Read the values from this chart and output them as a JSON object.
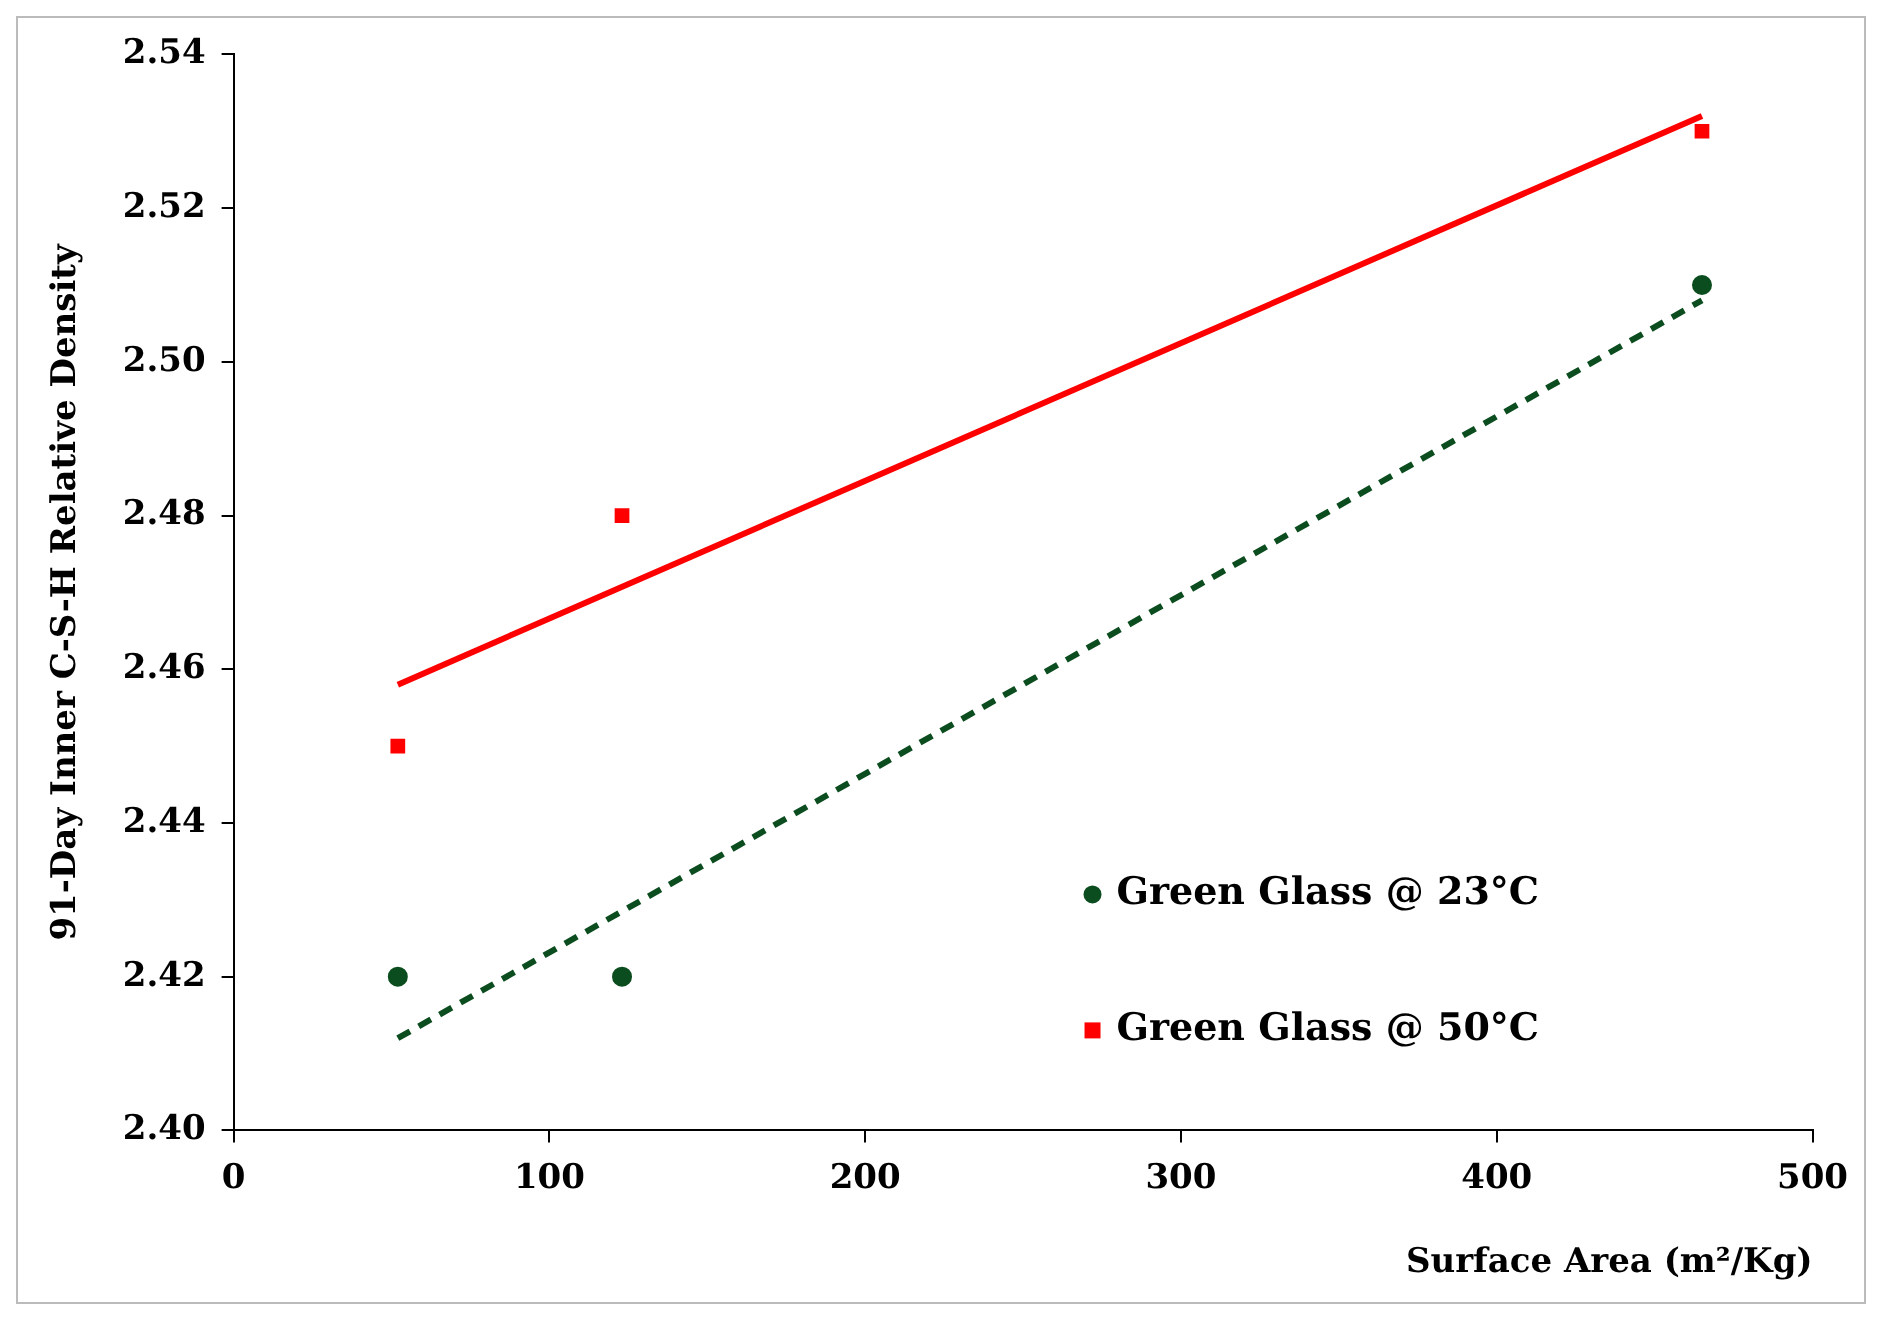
{
  "chart_data": {
    "type": "scatter",
    "xlabel": "Surface Area (m²/Kg)",
    "ylabel": "91-Day Inner C-S-H Relative Density",
    "xlim": [
      0,
      500
    ],
    "xticks": [
      0,
      100,
      200,
      300,
      400,
      500
    ],
    "ylim": [
      2.4,
      2.54
    ],
    "yticks": [
      {
        "value": 2.4,
        "label": "2.40"
      },
      {
        "value": 2.42,
        "label": "2.42"
      },
      {
        "value": 2.44,
        "label": "2.44"
      },
      {
        "value": 2.46,
        "label": "2.46"
      },
      {
        "value": 2.48,
        "label": "2.48"
      },
      {
        "value": 2.5,
        "label": "2.50"
      },
      {
        "value": 2.52,
        "label": "2.52"
      },
      {
        "value": 2.54,
        "label": "2.54"
      }
    ],
    "grid": false,
    "legend": "bottom right",
    "series": [
      {
        "name": "Green Glass @ 23°C",
        "type": "scatter",
        "color": "#0b4d1e",
        "marker": "circle",
        "x": [
          52,
          123,
          465
        ],
        "values": [
          2.42,
          2.42,
          2.51
        ]
      },
      {
        "name": "Green Glass @ 50°C",
        "type": "scatter",
        "color": "#ff0000",
        "marker": "square",
        "x": [
          52,
          123,
          465
        ],
        "values": [
          2.45,
          2.48,
          2.53
        ]
      },
      {
        "type": "line",
        "color": "#0b4d1e",
        "line_style": "dashed",
        "marker": "none",
        "x": [
          52,
          465
        ],
        "values": [
          2.412,
          2.508
        ]
      },
      {
        "type": "line",
        "color": "#ff0000",
        "line_style": "solid",
        "marker": "none",
        "x": [
          52,
          465
        ],
        "values": [
          2.458,
          2.532
        ]
      }
    ]
  }
}
